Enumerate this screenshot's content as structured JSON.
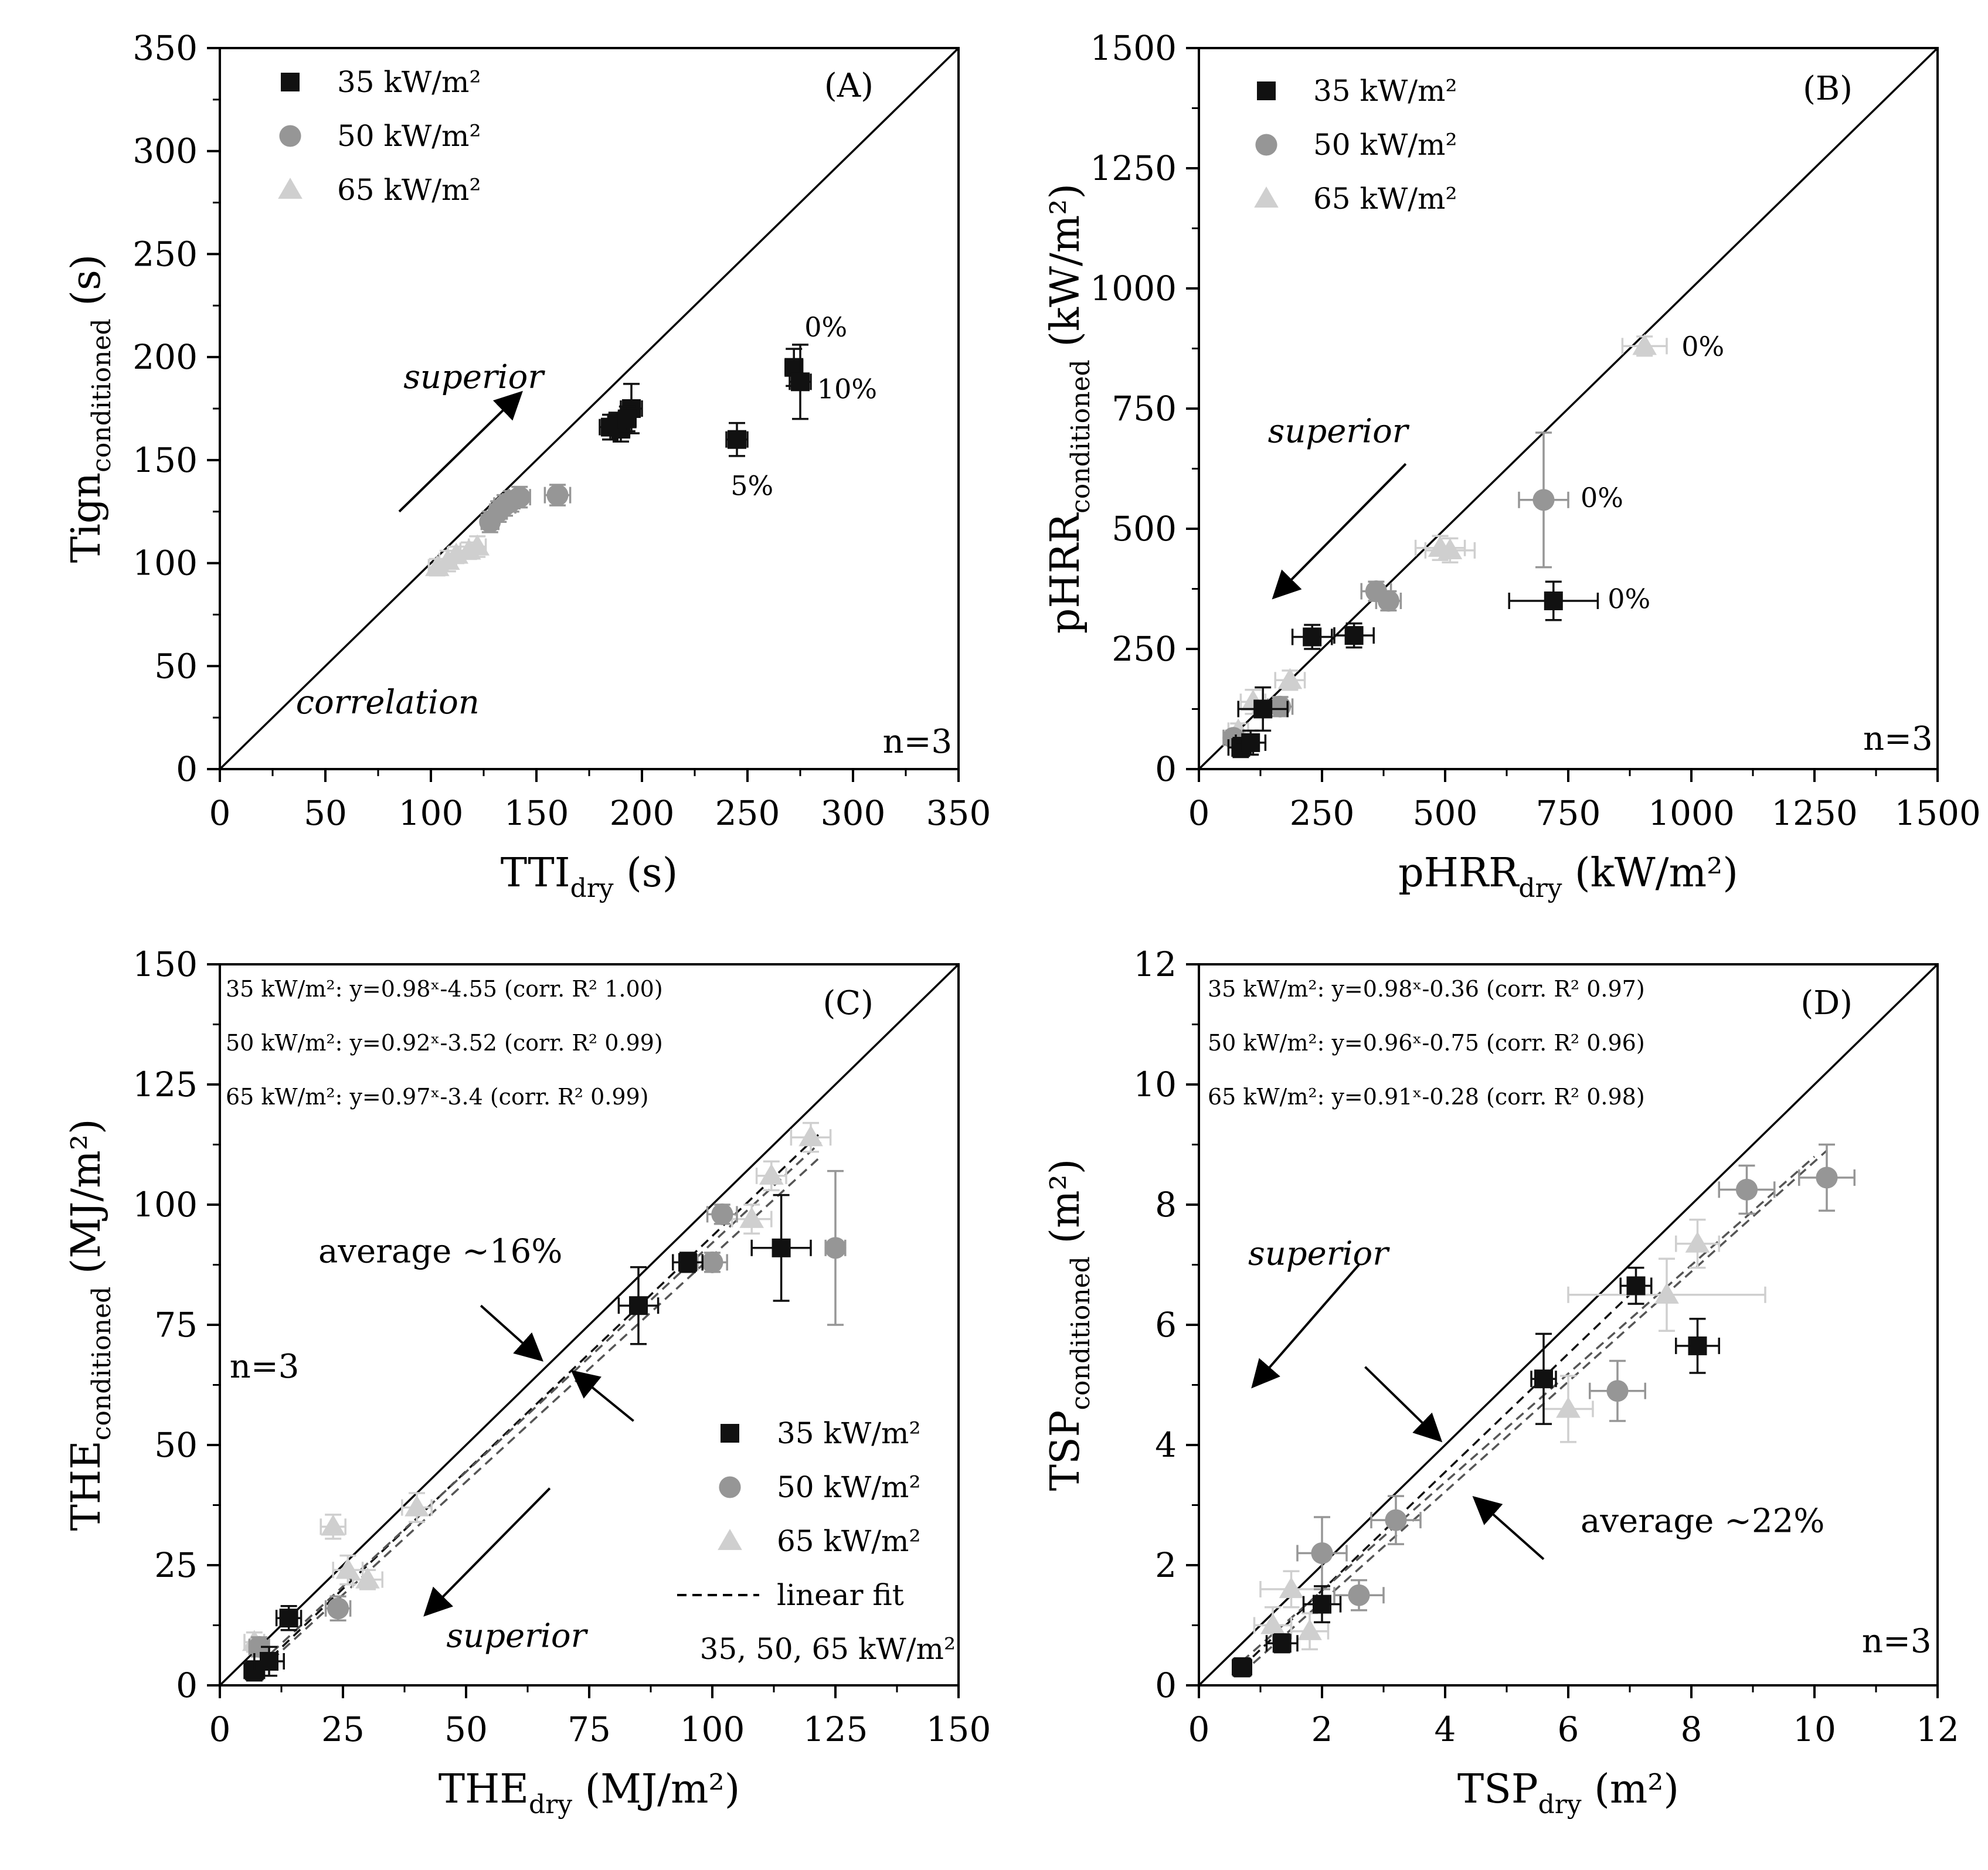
{
  "colors": {
    "s35": "#111111",
    "s50": "#969696",
    "s65": "#cfcfcf",
    "line": "#000000",
    "fit35": "#111111",
    "fit50": "#555555",
    "fit65": "#555555"
  },
  "series_names": [
    "35 kW/m²",
    "50 kW/m²",
    "65 kW/m²"
  ],
  "chart_data": [
    {
      "id": "A",
      "type": "scatter",
      "panel_label": "(A)",
      "xlabel": "TTI",
      "xlabel_sub": "dry",
      "xlabel_suffix": " (s)",
      "ylabel": "Tign",
      "ylabel_sub": "conditioned",
      "ylabel_suffix": " (s)",
      "xlim": [
        0,
        350
      ],
      "ylim": [
        0,
        350
      ],
      "xticks": [
        0,
        50,
        100,
        150,
        200,
        250,
        300,
        350
      ],
      "yticks": [
        0,
        50,
        100,
        150,
        200,
        250,
        300,
        350
      ],
      "xtick_labels": [
        "0",
        "50",
        "100",
        "150",
        "200",
        "250",
        "300",
        "350"
      ],
      "ytick_labels": [
        "0",
        "50",
        "100",
        "150",
        "200",
        "250",
        "300",
        "350"
      ],
      "minor_x": 25,
      "minor_y": 25,
      "diagonal": true,
      "legend": "top-left",
      "series": [
        {
          "name": "35 kW/m²",
          "marker": "square",
          "points": [
            {
              "x": 185,
              "y": 166,
              "xe": 5,
              "ye": 6
            },
            {
              "x": 188,
              "y": 168,
              "xe": 4,
              "ye": 5
            },
            {
              "x": 190,
              "y": 165,
              "xe": 4,
              "ye": 6
            },
            {
              "x": 195,
              "y": 175,
              "xe": 5,
              "ye": 12
            },
            {
              "x": 193,
              "y": 170,
              "xe": 4,
              "ye": 6
            },
            {
              "x": 245,
              "y": 160,
              "xe": 5,
              "ye": 8
            },
            {
              "x": 272,
              "y": 195,
              "xe": 4,
              "ye": 9
            },
            {
              "x": 275,
              "y": 188,
              "xe": 5,
              "ye": 18
            }
          ]
        },
        {
          "name": "50 kW/m²",
          "marker": "circle",
          "points": [
            {
              "x": 128,
              "y": 120,
              "xe": 4,
              "ye": 5
            },
            {
              "x": 132,
              "y": 125,
              "xe": 4,
              "ye": 5
            },
            {
              "x": 135,
              "y": 128,
              "xe": 5,
              "ye": 5
            },
            {
              "x": 138,
              "y": 130,
              "xe": 4,
              "ye": 5
            },
            {
              "x": 142,
              "y": 132,
              "xe": 5,
              "ye": 5
            },
            {
              "x": 160,
              "y": 133,
              "xe": 6,
              "ye": 5
            }
          ]
        },
        {
          "name": "65 kW/m²",
          "marker": "triangle",
          "points": [
            {
              "x": 103,
              "y": 98,
              "xe": 4,
              "ye": 4
            },
            {
              "x": 108,
              "y": 101,
              "xe": 4,
              "ye": 5
            },
            {
              "x": 112,
              "y": 104,
              "xe": 4,
              "ye": 4
            },
            {
              "x": 118,
              "y": 106,
              "xe": 4,
              "ye": 4
            },
            {
              "x": 122,
              "y": 108,
              "xe": 4,
              "ye": 5
            }
          ]
        }
      ],
      "point_labels": [
        {
          "text": "0%",
          "x": 277,
          "y": 210
        },
        {
          "text": "10%",
          "x": 283,
          "y": 180
        },
        {
          "text": "5%",
          "x": 242,
          "y": 133
        }
      ],
      "notes": [
        {
          "text": "superior",
          "x": 87,
          "y": 185,
          "italic": true
        },
        {
          "text": "correlation",
          "x": 36,
          "y": 27,
          "italic": true
        },
        {
          "text": "n=3",
          "x": 347,
          "y": 8,
          "anchor": "end"
        }
      ],
      "arrows": [
        {
          "x1": 85,
          "y1": 125,
          "x2": 142,
          "y2": 182
        }
      ]
    },
    {
      "id": "B",
      "type": "scatter",
      "panel_label": "(B)",
      "xlabel": "pHRR",
      "xlabel_sub": "dry",
      "xlabel_suffix": " (kW/m²)",
      "ylabel": "pHRR",
      "ylabel_sub": "conditioned",
      "ylabel_suffix": " (kW/m²)",
      "xlim": [
        0,
        1500
      ],
      "ylim": [
        0,
        1500
      ],
      "xticks": [
        0,
        250,
        500,
        750,
        1000,
        1250,
        1500
      ],
      "yticks": [
        0,
        250,
        500,
        750,
        1000,
        1250,
        1500
      ],
      "xtick_labels": [
        "0",
        "250",
        "500",
        "750",
        "1000",
        "1250",
        "1500"
      ],
      "ytick_labels": [
        "0",
        "250",
        "500",
        "750",
        "1000",
        "1250",
        "1500"
      ],
      "minor_x": 125,
      "minor_y": 125,
      "diagonal": true,
      "legend": "top-left",
      "series": [
        {
          "name": "35 kW/m²",
          "marker": "square",
          "points": [
            {
              "x": 85,
              "y": 45,
              "xe": 25,
              "ye": 20
            },
            {
              "x": 105,
              "y": 55,
              "xe": 30,
              "ye": 25
            },
            {
              "x": 130,
              "y": 125,
              "xe": 50,
              "ye": 45
            },
            {
              "x": 230,
              "y": 275,
              "xe": 40,
              "ye": 25
            },
            {
              "x": 315,
              "y": 278,
              "xe": 40,
              "ye": 25
            },
            {
              "x": 720,
              "y": 350,
              "xe": 90,
              "ye": 40
            }
          ]
        },
        {
          "name": "50 kW/m²",
          "marker": "circle",
          "points": [
            {
              "x": 70,
              "y": 65,
              "xe": 20,
              "ye": 15
            },
            {
              "x": 165,
              "y": 130,
              "xe": 25,
              "ye": 20
            },
            {
              "x": 360,
              "y": 370,
              "xe": 30,
              "ye": 20
            },
            {
              "x": 385,
              "y": 350,
              "xe": 25,
              "ye": 20
            },
            {
              "x": 700,
              "y": 560,
              "xe": 50,
              "ye": 140
            }
          ]
        },
        {
          "name": "65 kW/m²",
          "marker": "triangle",
          "points": [
            {
              "x": 80,
              "y": 80,
              "xe": 20,
              "ye": 15
            },
            {
              "x": 110,
              "y": 140,
              "xe": 25,
              "ye": 25
            },
            {
              "x": 185,
              "y": 185,
              "xe": 30,
              "ye": 20
            },
            {
              "x": 490,
              "y": 460,
              "xe": 50,
              "ye": 25
            },
            {
              "x": 510,
              "y": 455,
              "xe": 50,
              "ye": 25
            },
            {
              "x": 905,
              "y": 880,
              "xe": 45,
              "ye": 20
            }
          ]
        }
      ],
      "point_labels": [
        {
          "text": "0%",
          "x": 980,
          "y": 860
        },
        {
          "text": "0%",
          "x": 775,
          "y": 545
        },
        {
          "text": "0%",
          "x": 830,
          "y": 335
        }
      ],
      "notes": [
        {
          "text": "superior",
          "x": 140,
          "y": 680,
          "italic": true
        },
        {
          "text": "n=3",
          "x": 1490,
          "y": 40,
          "anchor": "end"
        }
      ],
      "arrows": [
        {
          "x1": 420,
          "y1": 635,
          "x2": 155,
          "y2": 360
        }
      ]
    },
    {
      "id": "C",
      "type": "scatter",
      "panel_label": "(C)",
      "xlabel": "THE",
      "xlabel_sub": "dry",
      "xlabel_suffix": " (MJ/m²)",
      "ylabel": "THE",
      "ylabel_sub": "conditioned",
      "ylabel_suffix": " (MJ/m²)",
      "xlim": [
        0,
        150
      ],
      "ylim": [
        0,
        150
      ],
      "xticks": [
        0,
        25,
        50,
        75,
        100,
        125,
        150
      ],
      "yticks": [
        0,
        25,
        50,
        75,
        100,
        125,
        150
      ],
      "xtick_labels": [
        "0",
        "25",
        "50",
        "75",
        "100",
        "125",
        "150"
      ],
      "ytick_labels": [
        "0",
        "25",
        "50",
        "75",
        "100",
        "125",
        "150"
      ],
      "minor_x": 12.5,
      "minor_y": 12.5,
      "diagonal": true,
      "legend": "bottom-right",
      "legend_extra": [
        "linear fit",
        "35, 50, 65 kW/m²"
      ],
      "equations": [
        "35 kW/m²: y=0.98ˣ-4.55 (corr. R² 1.00)",
        "50 kW/m²: y=0.92ˣ-3.52 (corr. R² 0.99)",
        "65 kW/m²: y=0.97ˣ-3.4 (corr. R² 0.99)"
      ],
      "fits": [
        {
          "series": "35 kW/m²",
          "x1": 6,
          "y1": 1.5,
          "x2": 122,
          "y2": 115
        },
        {
          "series": "50 kW/m²",
          "x1": 6,
          "y1": 1.0,
          "x2": 122,
          "y2": 110
        },
        {
          "series": "65 kW/m²",
          "x1": 6,
          "y1": 2.5,
          "x2": 122,
          "y2": 113
        }
      ],
      "series": [
        {
          "name": "35 kW/m²",
          "marker": "square",
          "points": [
            {
              "x": 7,
              "y": 3,
              "xe": 2,
              "ye": 2
            },
            {
              "x": 10,
              "y": 5,
              "xe": 3,
              "ye": 3
            },
            {
              "x": 14,
              "y": 14,
              "xe": 2.5,
              "ye": 2.5
            },
            {
              "x": 85,
              "y": 79,
              "xe": 4,
              "ye": 8
            },
            {
              "x": 95,
              "y": 88,
              "xe": 3,
              "ye": 2
            },
            {
              "x": 114,
              "y": 91,
              "xe": 6,
              "ye": 11
            }
          ]
        },
        {
          "name": "50 kW/m²",
          "marker": "circle",
          "points": [
            {
              "x": 8,
              "y": 8,
              "xe": 2,
              "ye": 2
            },
            {
              "x": 24,
              "y": 16,
              "xe": 2.5,
              "ye": 2.5
            },
            {
              "x": 100,
              "y": 88,
              "xe": 3,
              "ye": 2
            },
            {
              "x": 102,
              "y": 98,
              "xe": 3,
              "ye": 2
            },
            {
              "x": 125,
              "y": 91,
              "xe": 2,
              "ye": 16
            }
          ]
        },
        {
          "name": "65 kW/m²",
          "marker": "triangle",
          "points": [
            {
              "x": 7,
              "y": 9,
              "xe": 2,
              "ye": 2
            },
            {
              "x": 23,
              "y": 33,
              "xe": 2.5,
              "ye": 2.5
            },
            {
              "x": 26,
              "y": 24,
              "xe": 3,
              "ye": 3
            },
            {
              "x": 30,
              "y": 22,
              "xe": 3,
              "ye": 2
            },
            {
              "x": 40,
              "y": 37,
              "xe": 3,
              "ye": 3
            },
            {
              "x": 108,
              "y": 97,
              "xe": 4,
              "ye": 3
            },
            {
              "x": 112,
              "y": 106,
              "xe": 3,
              "ye": 3
            },
            {
              "x": 120,
              "y": 114,
              "xe": 4,
              "ye": 3
            }
          ]
        }
      ],
      "point_labels": [],
      "notes": [
        {
          "text": "average ~16%",
          "x": 20,
          "y": 88,
          "italic": false
        },
        {
          "text": "n=3",
          "x": 2,
          "y": 64,
          "italic": false
        },
        {
          "text": "superior",
          "x": 46,
          "y": 8,
          "italic": true
        }
      ],
      "arrows": [
        {
          "x1": 53,
          "y1": 79,
          "x2": 65,
          "y2": 68
        },
        {
          "x1": 84,
          "y1": 55,
          "x2": 72,
          "y2": 65
        },
        {
          "x1": 67,
          "y1": 41,
          "x2": 42,
          "y2": 15
        }
      ]
    },
    {
      "id": "D",
      "type": "scatter",
      "panel_label": "(D)",
      "xlabel": "TSP",
      "xlabel_sub": "dry",
      "xlabel_suffix": " (m²)",
      "ylabel": "TSP",
      "ylabel_sub": "conditioned",
      "ylabel_suffix": " (m²)",
      "xlim": [
        0,
        12
      ],
      "ylim": [
        0,
        12
      ],
      "xticks": [
        0,
        2,
        4,
        6,
        8,
        10,
        12
      ],
      "yticks": [
        0,
        2,
        4,
        6,
        8,
        10,
        12
      ],
      "xtick_labels": [
        "0",
        "2",
        "4",
        "6",
        "8",
        "10",
        "12"
      ],
      "ytick_labels": [
        "0",
        "2",
        "4",
        "6",
        "8",
        "10",
        "12"
      ],
      "minor_x": 1,
      "minor_y": 1,
      "diagonal": true,
      "legend": "none",
      "equations": [
        "35 kW/m²: y=0.98ˣ-0.36 (corr. R² 0.97)",
        "50 kW/m²: y=0.96ˣ-0.75 (corr. R² 0.96)",
        "65 kW/m²: y=0.91ˣ-0.28 (corr. R² 0.98)"
      ],
      "fits": [
        {
          "series": "35 kW/m²",
          "x1": 0.7,
          "y1": 0.3,
          "x2": 7.2,
          "y2": 6.7
        },
        {
          "series": "50 kW/m²",
          "x1": 0.7,
          "y1": 0.2,
          "x2": 10.2,
          "y2": 8.9
        },
        {
          "series": "65 kW/m²",
          "x1": 0.7,
          "y1": 0.4,
          "x2": 10.0,
          "y2": 8.8
        }
      ],
      "series": [
        {
          "name": "35 kW/m²",
          "marker": "square",
          "points": [
            {
              "x": 0.7,
              "y": 0.3,
              "xe": 0.15,
              "ye": 0.15
            },
            {
              "x": 1.35,
              "y": 0.7,
              "xe": 0.25,
              "ye": 0.15
            },
            {
              "x": 2.0,
              "y": 1.35,
              "xe": 0.3,
              "ye": 0.3
            },
            {
              "x": 5.6,
              "y": 5.1,
              "xe": 0.2,
              "ye": 0.75
            },
            {
              "x": 7.1,
              "y": 6.65,
              "xe": 0.25,
              "ye": 0.3
            },
            {
              "x": 8.1,
              "y": 5.65,
              "xe": 0.35,
              "ye": 0.45
            }
          ]
        },
        {
          "name": "50 kW/m²",
          "marker": "circle",
          "points": [
            {
              "x": 2.0,
              "y": 2.2,
              "xe": 0.4,
              "ye": 0.6
            },
            {
              "x": 2.6,
              "y": 1.5,
              "xe": 0.4,
              "ye": 0.25
            },
            {
              "x": 3.2,
              "y": 2.75,
              "xe": 0.4,
              "ye": 0.4
            },
            {
              "x": 6.8,
              "y": 4.9,
              "xe": 0.45,
              "ye": 0.5
            },
            {
              "x": 8.9,
              "y": 8.25,
              "xe": 0.45,
              "ye": 0.4
            },
            {
              "x": 10.2,
              "y": 8.45,
              "xe": 0.45,
              "ye": 0.55
            }
          ]
        },
        {
          "name": "65 kW/m²",
          "marker": "triangle",
          "points": [
            {
              "x": 1.2,
              "y": 1.0,
              "xe": 0.3,
              "ye": 0.3
            },
            {
              "x": 1.5,
              "y": 1.6,
              "xe": 0.5,
              "ye": 0.3
            },
            {
              "x": 1.8,
              "y": 0.9,
              "xe": 0.3,
              "ye": 0.3
            },
            {
              "x": 6.0,
              "y": 4.6,
              "xe": 0.4,
              "ye": 0.55
            },
            {
              "x": 7.6,
              "y": 6.5,
              "xe": 1.6,
              "ye": 0.6
            },
            {
              "x": 8.1,
              "y": 7.35,
              "xe": 0.35,
              "ye": 0.4
            }
          ]
        }
      ],
      "point_labels": [],
      "notes": [
        {
          "text": "superior",
          "x": 0.8,
          "y": 7.0,
          "italic": true
        },
        {
          "text": "average ~22%",
          "x": 6.2,
          "y": 2.55,
          "italic": false
        },
        {
          "text": "n=3",
          "x": 11.9,
          "y": 0.55,
          "anchor": "end"
        }
      ],
      "arrows": [
        {
          "x1": 2.6,
          "y1": 7.0,
          "x2": 0.9,
          "y2": 5.0
        },
        {
          "x1": 2.7,
          "y1": 5.3,
          "x2": 3.9,
          "y2": 4.1
        },
        {
          "x1": 5.6,
          "y1": 2.1,
          "x2": 4.5,
          "y2": 3.1
        }
      ]
    }
  ]
}
